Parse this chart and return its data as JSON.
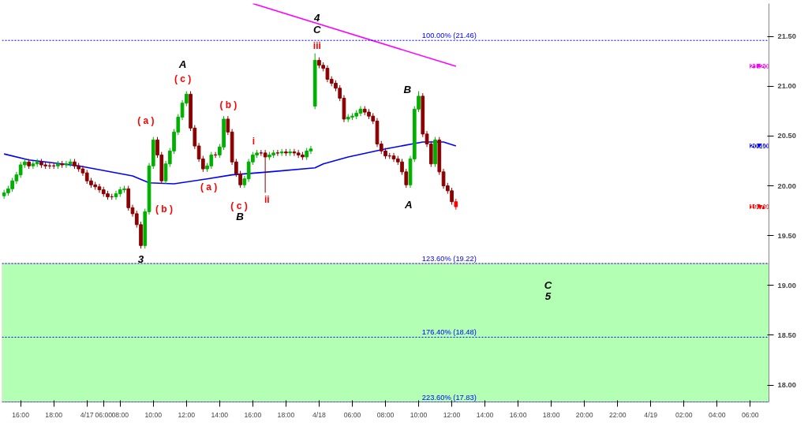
{
  "chart_data": {
    "type": "candlestick",
    "categories": [
      null,
      null,
      null,
      null,
      "16:00",
      null,
      null,
      null,
      null,
      null,
      null,
      null,
      "18:00",
      null,
      null,
      null,
      null,
      null,
      null,
      null,
      "4/17",
      null,
      null,
      null,
      "06:00",
      null,
      null,
      null,
      "08:00",
      null,
      null,
      null,
      null,
      null,
      null,
      null,
      "10:00",
      null,
      null,
      null,
      null,
      null,
      null,
      null,
      "12:00",
      null,
      null,
      null,
      null,
      null,
      null,
      null,
      "14:00",
      null,
      null,
      null,
      null,
      null,
      null,
      null,
      "16:00",
      null,
      null,
      null,
      null,
      null,
      null,
      null,
      "18:00",
      null,
      null,
      null,
      null,
      null,
      null,
      null,
      "4/18",
      null,
      null,
      null,
      null,
      null,
      null,
      null,
      "06:00",
      null,
      null,
      null,
      null,
      null,
      null,
      null,
      "08:00",
      null,
      null,
      null,
      null,
      null,
      null,
      null,
      "10:00",
      null,
      null,
      null,
      null,
      null,
      null,
      null,
      "12:00",
      null,
      null,
      null,
      null,
      null,
      null,
      null,
      "14:00",
      null,
      null,
      null,
      null,
      null,
      null,
      null,
      "16:00",
      null,
      null,
      null,
      null,
      null,
      null,
      null,
      "18:00",
      null,
      null,
      null,
      null,
      null,
      null,
      null,
      "20:00",
      null,
      null,
      null,
      null,
      null,
      null,
      null,
      "22:00",
      null,
      null,
      null,
      null,
      null,
      null,
      null,
      "4/19",
      null,
      null,
      null,
      null,
      null,
      null,
      null,
      "02:00",
      null,
      null,
      null,
      null,
      null,
      null,
      null,
      "04:00",
      null,
      null,
      null,
      null,
      null,
      null,
      null,
      "06:00",
      null,
      null,
      null,
      null
    ],
    "ohlc": [
      [
        19.9,
        19.96,
        19.87,
        19.93
      ],
      [
        19.93,
        20.0,
        19.9,
        19.97
      ],
      [
        19.97,
        20.08,
        19.94,
        20.05
      ],
      [
        20.05,
        20.14,
        20.02,
        20.11
      ],
      [
        20.11,
        20.24,
        20.08,
        20.21
      ],
      [
        20.21,
        20.27,
        20.18,
        20.24
      ],
      [
        20.24,
        20.27,
        20.17,
        20.2
      ],
      [
        20.2,
        20.25,
        20.17,
        20.22
      ],
      [
        20.22,
        20.27,
        20.19,
        20.24
      ],
      [
        20.24,
        20.27,
        20.18,
        20.21
      ],
      [
        20.21,
        20.24,
        20.17,
        20.2
      ],
      [
        20.2,
        20.23,
        20.17,
        20.2
      ],
      [
        20.2,
        20.23,
        20.17,
        20.2
      ],
      [
        20.2,
        20.25,
        20.17,
        20.22
      ],
      [
        20.22,
        20.25,
        20.18,
        20.21
      ],
      [
        20.21,
        20.25,
        20.18,
        20.22
      ],
      [
        20.22,
        20.27,
        20.19,
        20.24
      ],
      [
        20.24,
        20.27,
        20.17,
        20.2
      ],
      [
        20.2,
        20.23,
        20.14,
        20.17
      ],
      [
        20.17,
        20.2,
        20.1,
        20.13
      ],
      [
        20.13,
        20.16,
        20.02,
        20.05
      ],
      [
        20.05,
        20.08,
        19.98,
        20.01
      ],
      [
        20.01,
        20.04,
        19.96,
        19.99
      ],
      [
        19.99,
        20.02,
        19.93,
        19.96
      ],
      [
        19.96,
        19.99,
        19.89,
        19.92
      ],
      [
        19.92,
        19.95,
        19.86,
        19.89
      ],
      [
        19.89,
        19.92,
        19.86,
        19.89
      ],
      [
        19.89,
        19.95,
        19.86,
        19.92
      ],
      [
        19.92,
        19.99,
        19.89,
        19.96
      ],
      [
        19.96,
        20.0,
        19.93,
        19.97
      ],
      [
        19.97,
        20.0,
        19.75,
        19.78
      ],
      [
        19.78,
        19.81,
        19.69,
        19.72
      ],
      [
        19.72,
        19.75,
        19.58,
        19.61
      ],
      [
        19.61,
        19.64,
        19.37,
        19.4
      ],
      [
        19.4,
        19.77,
        19.37,
        19.74
      ],
      [
        19.74,
        20.23,
        19.71,
        20.2
      ],
      [
        20.2,
        20.49,
        20.17,
        20.46
      ],
      [
        20.46,
        20.49,
        20.28,
        20.31
      ],
      [
        20.31,
        20.34,
        20.02,
        20.05
      ],
      [
        20.05,
        20.25,
        20.02,
        20.22
      ],
      [
        20.22,
        20.38,
        20.19,
        20.35
      ],
      [
        20.35,
        20.57,
        20.32,
        20.54
      ],
      [
        20.54,
        20.72,
        20.51,
        20.69
      ],
      [
        20.69,
        20.86,
        20.66,
        20.83
      ],
      [
        20.83,
        20.95,
        20.8,
        20.92
      ],
      [
        20.92,
        20.95,
        20.55,
        20.58
      ],
      [
        20.58,
        20.61,
        20.37,
        20.4
      ],
      [
        20.4,
        20.43,
        20.24,
        20.27
      ],
      [
        20.27,
        20.3,
        20.14,
        20.17
      ],
      [
        20.17,
        20.23,
        20.14,
        20.2
      ],
      [
        20.2,
        20.34,
        20.17,
        20.31
      ],
      [
        20.31,
        20.34,
        20.28,
        20.31
      ],
      [
        20.31,
        20.42,
        20.28,
        20.39
      ],
      [
        20.39,
        20.7,
        20.36,
        20.67
      ],
      [
        20.67,
        20.7,
        20.51,
        20.54
      ],
      [
        20.54,
        20.57,
        20.21,
        20.24
      ],
      [
        20.24,
        20.27,
        20.09,
        20.12
      ],
      [
        20.12,
        20.15,
        19.98,
        20.01
      ],
      [
        20.01,
        20.1,
        19.98,
        20.07
      ],
      [
        20.07,
        20.27,
        20.04,
        20.24
      ],
      [
        20.24,
        20.34,
        20.21,
        20.31
      ],
      [
        20.31,
        20.36,
        20.28,
        20.33
      ],
      [
        20.33,
        20.36,
        20.3,
        20.33
      ],
      [
        20.33,
        20.36,
        19.93,
        20.29
      ],
      [
        20.29,
        20.34,
        20.26,
        20.31
      ],
      [
        20.31,
        20.36,
        20.28,
        20.33
      ],
      [
        20.33,
        20.36,
        20.3,
        20.33
      ],
      [
        20.33,
        20.37,
        20.3,
        20.34
      ],
      [
        20.34,
        20.37,
        20.3,
        20.33
      ],
      [
        20.33,
        20.37,
        20.3,
        20.34
      ],
      [
        20.34,
        20.37,
        20.3,
        20.33
      ],
      [
        20.33,
        20.36,
        20.28,
        20.31
      ],
      [
        20.31,
        20.34,
        20.26,
        20.29
      ],
      [
        20.29,
        20.38,
        20.26,
        20.35
      ],
      [
        20.35,
        20.4,
        20.32,
        20.37
      ],
      [
        20.8,
        21.33,
        20.77,
        21.26
      ],
      [
        21.26,
        21.29,
        21.18,
        21.21
      ],
      [
        21.21,
        21.24,
        21.15,
        21.18
      ],
      [
        21.18,
        21.21,
        21.04,
        21.07
      ],
      [
        21.07,
        21.1,
        21.0,
        21.03
      ],
      [
        21.03,
        21.06,
        20.95,
        20.98
      ],
      [
        20.98,
        21.01,
        20.85,
        20.88
      ],
      [
        20.88,
        20.91,
        20.64,
        20.67
      ],
      [
        20.67,
        20.72,
        20.64,
        20.69
      ],
      [
        20.69,
        20.73,
        20.66,
        20.7
      ],
      [
        20.7,
        20.76,
        20.67,
        20.73
      ],
      [
        20.73,
        20.8,
        20.7,
        20.77
      ],
      [
        20.77,
        20.8,
        20.71,
        20.74
      ],
      [
        20.74,
        20.77,
        20.67,
        20.7
      ],
      [
        20.7,
        20.73,
        20.62,
        20.65
      ],
      [
        20.65,
        20.68,
        20.39,
        20.42
      ],
      [
        20.42,
        20.45,
        20.32,
        20.35
      ],
      [
        20.35,
        20.38,
        20.27,
        20.3
      ],
      [
        20.3,
        20.33,
        20.27,
        20.3
      ],
      [
        20.3,
        20.33,
        20.24,
        20.27
      ],
      [
        20.27,
        20.3,
        20.21,
        20.24
      ],
      [
        20.24,
        20.27,
        20.11,
        20.14
      ],
      [
        20.14,
        20.17,
        19.98,
        20.01
      ],
      [
        20.01,
        20.3,
        19.98,
        20.27
      ],
      [
        20.27,
        20.8,
        20.24,
        20.77
      ],
      [
        20.77,
        20.95,
        20.74,
        20.9
      ],
      [
        20.9,
        20.93,
        20.49,
        20.52
      ],
      [
        20.52,
        20.55,
        20.39,
        20.42
      ],
      [
        20.42,
        20.45,
        20.19,
        20.22
      ],
      [
        20.22,
        20.49,
        20.19,
        20.46
      ],
      [
        20.46,
        20.49,
        20.11,
        20.14
      ],
      [
        20.14,
        20.17,
        19.97,
        20.0
      ],
      [
        20.0,
        20.03,
        19.92,
        19.95
      ],
      [
        19.95,
        19.98,
        19.81,
        19.84
      ],
      [
        19.84,
        19.87,
        19.76,
        19.79
      ],
      null,
      null,
      null,
      null,
      null,
      null,
      null,
      null,
      null,
      null,
      null,
      null,
      null,
      null,
      null,
      null,
      null,
      null,
      null,
      null,
      null,
      null,
      null,
      null,
      null,
      null,
      null,
      null,
      null,
      null,
      null,
      null,
      null,
      null,
      null,
      null,
      null,
      null,
      null,
      null,
      null,
      null,
      null,
      null,
      null,
      null,
      null,
      null,
      null,
      null,
      null,
      null,
      null,
      null,
      null,
      null,
      null,
      null,
      null,
      null,
      null,
      null,
      null,
      null,
      null,
      null,
      null,
      null,
      null,
      null,
      null,
      null,
      null,
      null,
      null
    ],
    "colors": [
      "#00b000",
      "#00b000",
      "#00b000",
      "#00b000",
      "#00b000",
      "#00b000",
      "#8b0000",
      "#00b000",
      "#00b000",
      "#8b0000",
      "#8b0000",
      "#8b0000",
      "#8b0000",
      "#00b000",
      "#8b0000",
      "#00b000",
      "#00b000",
      "#8b0000",
      "#8b0000",
      "#8b0000",
      "#8b0000",
      "#8b0000",
      "#8b0000",
      "#8b0000",
      "#8b0000",
      "#8b0000",
      "#8b0000",
      "#00b000",
      "#00b000",
      "#00b000",
      "#8b0000",
      "#8b0000",
      "#8b0000",
      "#8b0000",
      "#00b000",
      "#00b000",
      "#00b000",
      "#8b0000",
      "#8b0000",
      "#00b000",
      "#00b000",
      "#00b000",
      "#00b000",
      "#00b000",
      "#00b000",
      "#8b0000",
      "#8b0000",
      "#8b0000",
      "#8b0000",
      "#00b000",
      "#00b000",
      "#8b0000",
      "#00b000",
      "#00b000",
      "#8b0000",
      "#8b0000",
      "#8b0000",
      "#8b0000",
      "#00b000",
      "#00b000",
      "#00b000",
      "#00b000",
      "#8b0000",
      "#8b0000",
      "#00b000",
      "#00b000",
      "#8b0000",
      "#00b000",
      "#8b0000",
      "#00b000",
      "#8b0000",
      "#8b0000",
      "#8b0000",
      "#00b000",
      "#00b000",
      "#00b000",
      "#8b0000",
      "#8b0000",
      "#8b0000",
      "#8b0000",
      "#8b0000",
      "#8b0000",
      "#8b0000",
      "#00b000",
      "#00b000",
      "#00b000",
      "#00b000",
      "#8b0000",
      "#8b0000",
      "#8b0000",
      "#8b0000",
      "#8b0000",
      "#8b0000",
      "#8b0000",
      "#8b0000",
      "#8b0000",
      "#8b0000",
      "#8b0000",
      "#00b000",
      "#00b000",
      "#00b000",
      "#8b0000",
      "#8b0000",
      "#8b0000",
      "#00b000",
      "#8b0000",
      "#8b0000",
      "#8b0000",
      "#8b0000",
      "#ff0000",
      null,
      null,
      null,
      null,
      null,
      null,
      null,
      null,
      null,
      null,
      null,
      null,
      null,
      null,
      null,
      null,
      null,
      null,
      null,
      null,
      null,
      null,
      null,
      null,
      null,
      null,
      null,
      null,
      null,
      null,
      null,
      null,
      null,
      null,
      null,
      null,
      null,
      null,
      null,
      null,
      null,
      null,
      null,
      null,
      null,
      null,
      null,
      null,
      null,
      null,
      null,
      null,
      null,
      null,
      null,
      null,
      null,
      null,
      null,
      null,
      null,
      null,
      null,
      null,
      null,
      null,
      null,
      null,
      null,
      null,
      null,
      null,
      null,
      null,
      null
    ],
    "series": [
      {
        "type": "line",
        "color": "#0000ff",
        "values": [
          20.32,
          null,
          null,
          null,
          null,
          null,
          20.26,
          null,
          null,
          null,
          null,
          null,
          null,
          null,
          null,
          null,
          null,
          null,
          20.2,
          null,
          null,
          null,
          null,
          null,
          null,
          null,
          null,
          null,
          null,
          null,
          null,
          20.1,
          null,
          null,
          null,
          20.03,
          null,
          null,
          null,
          null,
          null,
          20.02,
          null,
          null,
          null,
          null,
          null,
          null,
          null,
          20.07,
          null,
          null,
          null,
          null,
          null,
          20.11,
          null,
          null,
          null,
          null,
          null,
          null,
          null,
          null,
          20.14,
          null,
          null,
          null,
          null,
          null,
          null,
          null,
          null,
          null,
          null,
          20.18,
          null,
          20.22,
          null,
          null,
          null,
          null,
          null,
          20.29,
          null,
          null,
          null,
          null,
          null,
          null,
          null,
          null,
          20.37,
          null,
          null,
          null,
          null,
          null,
          null,
          null,
          null,
          20.44,
          null,
          null,
          null,
          null,
          20.44,
          null,
          null,
          20.4,
          null,
          null,
          null,
          null,
          null,
          null,
          null,
          null,
          null,
          null,
          null,
          null,
          null,
          null,
          null,
          null,
          null,
          null,
          null,
          null,
          null,
          null,
          null,
          null,
          null,
          null,
          null,
          null,
          null,
          null,
          null,
          null,
          null,
          null,
          null,
          null,
          null,
          null,
          null,
          null,
          null,
          null,
          null,
          null,
          null,
          null,
          null,
          null,
          null,
          null,
          null,
          null,
          null,
          null,
          null,
          null,
          null,
          null,
          null,
          null,
          null,
          null,
          null,
          null,
          null,
          null,
          null,
          null,
          null,
          null,
          null,
          null,
          null,
          null,
          null
        ]
      },
      {
        "type": "line",
        "color": "#ff00ff",
        "values": [
          null,
          null,
          null,
          null,
          null,
          null,
          null,
          null,
          null,
          null,
          null,
          null,
          null,
          null,
          null,
          null,
          null,
          null,
          null,
          null,
          null,
          null,
          null,
          null,
          null,
          null,
          null,
          null,
          null,
          null,
          null,
          null,
          null,
          null,
          null,
          null,
          null,
          null,
          null,
          null,
          null,
          null,
          null,
          null,
          null,
          null,
          null,
          null,
          null,
          null,
          null,
          null,
          null,
          null,
          null,
          null,
          null,
          null,
          null,
          null,
          21.83,
          null,
          null,
          null,
          null,
          null,
          null,
          null,
          null,
          null,
          null,
          null,
          null,
          null,
          null,
          null,
          null,
          null,
          null,
          null,
          null,
          null,
          null,
          null,
          null,
          null,
          null,
          null,
          null,
          null,
          null,
          null,
          null,
          null,
          null,
          null,
          null,
          null,
          null,
          null,
          null,
          null,
          null,
          null,
          null,
          null,
          null,
          null,
          null,
          21.2,
          null,
          null,
          null,
          null,
          null,
          null,
          null,
          null,
          null,
          null,
          null,
          null,
          null,
          null,
          null,
          null,
          null,
          null,
          null,
          null,
          null,
          null,
          null,
          null,
          null,
          null,
          null,
          null,
          null,
          null,
          null,
          null,
          null,
          null,
          null,
          null,
          null,
          null,
          null,
          null,
          null,
          null,
          null,
          null,
          null,
          null,
          null,
          null,
          null,
          null,
          null,
          null,
          null,
          null,
          null,
          null,
          null,
          null,
          null,
          null,
          null,
          null,
          null,
          null,
          null,
          null,
          null,
          null,
          null,
          null,
          null,
          null,
          null,
          null,
          null
        ]
      }
    ],
    "ylim": [
      17.83,
      21.83
    ],
    "yticks": [
      {
        "value": 18,
        "label": "18.00"
      },
      {
        "value": 18.5,
        "label": "18.50"
      },
      {
        "value": 19,
        "label": "19.00"
      },
      {
        "value": 19.5,
        "label": "19.50"
      },
      {
        "value": 20,
        "label": "20.00"
      },
      {
        "value": 20.5,
        "label": "20.50"
      },
      {
        "value": 21,
        "label": "21.00"
      },
      {
        "value": 21.5,
        "label": "21.50"
      }
    ],
    "ref_lines": [
      {
        "axis": "y",
        "value": 21.46,
        "label": "100.00% (21.46)",
        "color": "#0000ff",
        "line_style": "dotted"
      },
      {
        "axis": "y",
        "value": 19.22,
        "label": "123.60% (19.22)",
        "color": "#0000ff",
        "line_style": "dotted"
      },
      {
        "axis": "y",
        "value": 18.48,
        "label": "176.40% (18.48)",
        "color": "#0000ff",
        "line_style": "dotted"
      },
      {
        "axis": "y",
        "value": 17.83,
        "label": "223.60% (17.83)",
        "color": "#0000ff",
        "line_style": "dotted"
      }
    ],
    "bands": [
      {
        "axis": "y",
        "from": 17.83,
        "to": 19.22,
        "color": "#b3ffb3"
      }
    ],
    "annotations": [
      "4",
      "C",
      "A",
      "B",
      "A",
      "B",
      "3",
      "C",
      "5",
      "iii",
      "( c )",
      "( a )",
      "( b )",
      "i",
      "ii",
      "( b )",
      "( a )",
      "( c )",
      "21.20",
      "20.40",
      "19.79"
    ],
    "grid": false
  }
}
